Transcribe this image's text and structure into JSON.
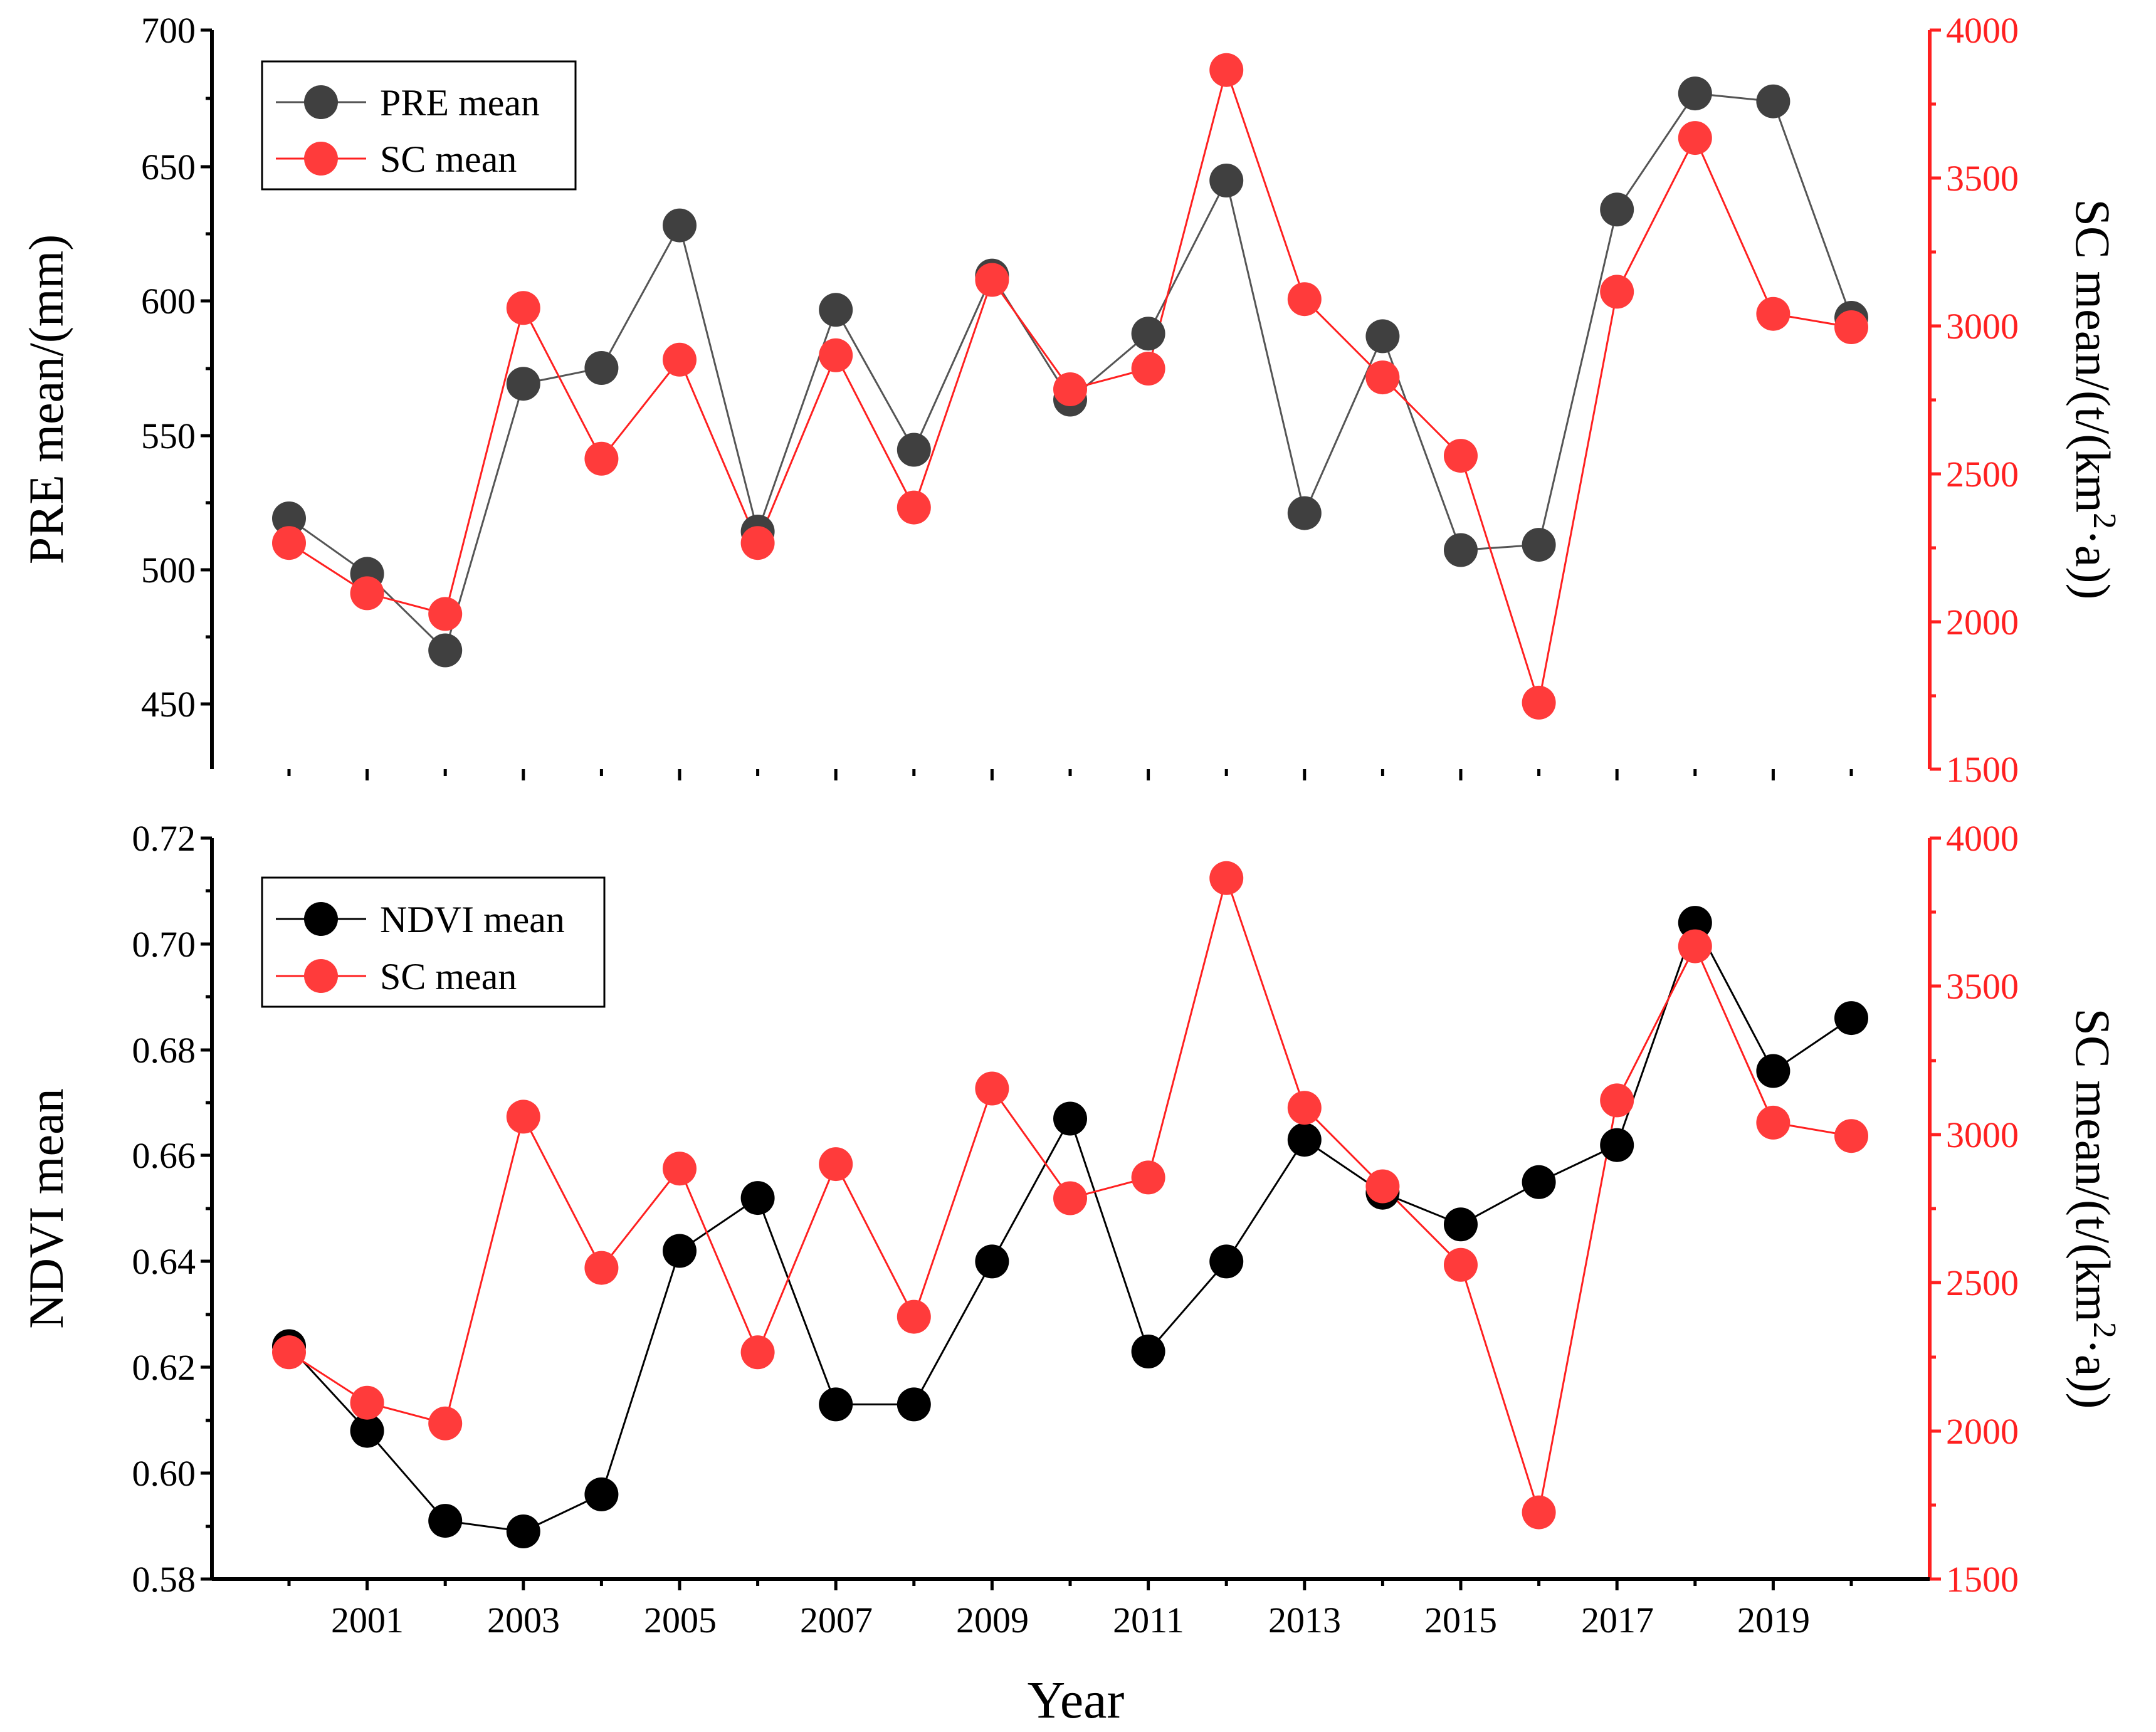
{
  "chart_data": [
    {
      "type": "line",
      "panel": "top",
      "x": [
        2000,
        2001,
        2002,
        2003,
        2004,
        2005,
        2006,
        2007,
        2008,
        2009,
        2010,
        2011,
        2012,
        2013,
        2014,
        2015,
        2016,
        2017,
        2018,
        2019,
        2020
      ],
      "series": [
        {
          "name": "PRE mean",
          "axis": "left",
          "color": "#555555",
          "marker_color": "#404040",
          "values": [
            515,
            494,
            465,
            566,
            572,
            626,
            510,
            594,
            541,
            607,
            560,
            585,
            643,
            517,
            584,
            503,
            505,
            632,
            676,
            673,
            591
          ]
        },
        {
          "name": "SC mean",
          "axis": "right",
          "color": "#ff2020",
          "marker_color": "#ff3b3b",
          "values": [
            2265,
            2095,
            2025,
            3060,
            2550,
            2885,
            2265,
            2900,
            2385,
            3155,
            2785,
            2855,
            3865,
            3090,
            2825,
            2560,
            1725,
            3115,
            3635,
            3040,
            2995
          ]
        }
      ],
      "ylabel": "PRE mean/(mm)",
      "ylim": [
        420,
        700
      ],
      "yticks": [
        "700",
        "650",
        "600",
        "550",
        "500",
        "450"
      ],
      "y2label_prefix": "SC mean/(t/(km",
      "y2label_sup": "2",
      "y2label_suffix": "·a))",
      "y2lim": [
        1500,
        4000
      ],
      "y2ticks": [
        "4000",
        "3500",
        "3000",
        "2500",
        "2000",
        "1500"
      ],
      "legend_position": "top-left"
    },
    {
      "type": "line",
      "panel": "bottom",
      "x": [
        2000,
        2001,
        2002,
        2003,
        2004,
        2005,
        2006,
        2007,
        2008,
        2009,
        2010,
        2011,
        2012,
        2013,
        2014,
        2015,
        2016,
        2017,
        2018,
        2019,
        2020
      ],
      "series": [
        {
          "name": "NDVI mean",
          "axis": "left",
          "color": "#000000",
          "marker_color": "#000000",
          "values": [
            0.624,
            0.608,
            0.591,
            0.589,
            0.596,
            0.642,
            0.652,
            0.613,
            0.613,
            0.64,
            0.667,
            0.623,
            0.64,
            0.663,
            0.653,
            0.647,
            0.655,
            0.662,
            0.704,
            0.676,
            0.686
          ]
        },
        {
          "name": "SC mean",
          "axis": "right",
          "color": "#ff2020",
          "marker_color": "#ff3b3b",
          "values": [
            2265,
            2095,
            2025,
            3060,
            2550,
            2885,
            2265,
            2900,
            2385,
            3155,
            2785,
            2855,
            3865,
            3090,
            2825,
            2560,
            1725,
            3115,
            3635,
            3040,
            2995
          ]
        }
      ],
      "ylabel": "NDVI mean",
      "ylim": [
        0.58,
        0.72
      ],
      "yticks": [
        "0.72",
        "0.70",
        "0.68",
        "0.66",
        "0.64",
        "0.62",
        "0.60",
        "0.58"
      ],
      "y2label_prefix": "SC mean/(t/(km",
      "y2label_sup": "2",
      "y2label_suffix": "·a))",
      "y2lim": [
        1500,
        4000
      ],
      "y2ticks": [
        "4000",
        "3500",
        "3000",
        "2500",
        "2000",
        "1500"
      ],
      "legend_position": "top-left"
    }
  ],
  "x_tick_labels": [
    "2001",
    "2003",
    "2005",
    "2007",
    "2009",
    "2011",
    "2013",
    "2015",
    "2017",
    "2019"
  ],
  "xlabel": "Year"
}
